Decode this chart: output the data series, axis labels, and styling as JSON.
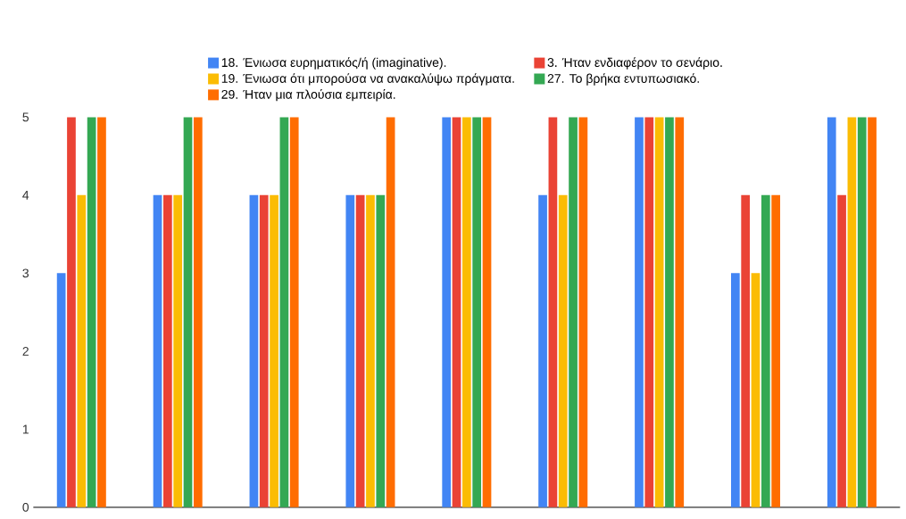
{
  "chart_data": {
    "type": "bar",
    "categories": [
      null,
      null,
      null,
      null,
      null,
      null,
      null,
      null,
      null
    ],
    "series": [
      {
        "name": "18. Ένιωσα ευρηματικός/ή (imaginative).",
        "color": "#4285f4",
        "values": [
          3,
          4,
          4,
          4,
          5,
          4,
          5,
          3,
          5
        ]
      },
      {
        "name": "3. Ήταν ενδιαφέρον το σενάριο.",
        "color": "#ea4335",
        "values": [
          5,
          4,
          4,
          4,
          5,
          5,
          5,
          4,
          4
        ]
      },
      {
        "name": "19. Ένιωσα ότι μπορούσα να ανακαλύψω πράγματα.",
        "color": "#fbbc04",
        "values": [
          4,
          4,
          4,
          4,
          5,
          4,
          5,
          3,
          5
        ]
      },
      {
        "name": "27. Το βρήκα εντυπωσιακό.",
        "color": "#34a853",
        "values": [
          5,
          5,
          5,
          4,
          5,
          5,
          5,
          4,
          5
        ]
      },
      {
        "name": "29. Ήταν μια πλούσια εμπειρία.",
        "color": "#ff6d01",
        "values": [
          5,
          5,
          5,
          5,
          5,
          5,
          5,
          4,
          5
        ]
      }
    ],
    "ylim": [
      0,
      5
    ],
    "yticks": [
      0,
      1,
      2,
      3,
      4,
      5
    ],
    "legend": "top"
  }
}
